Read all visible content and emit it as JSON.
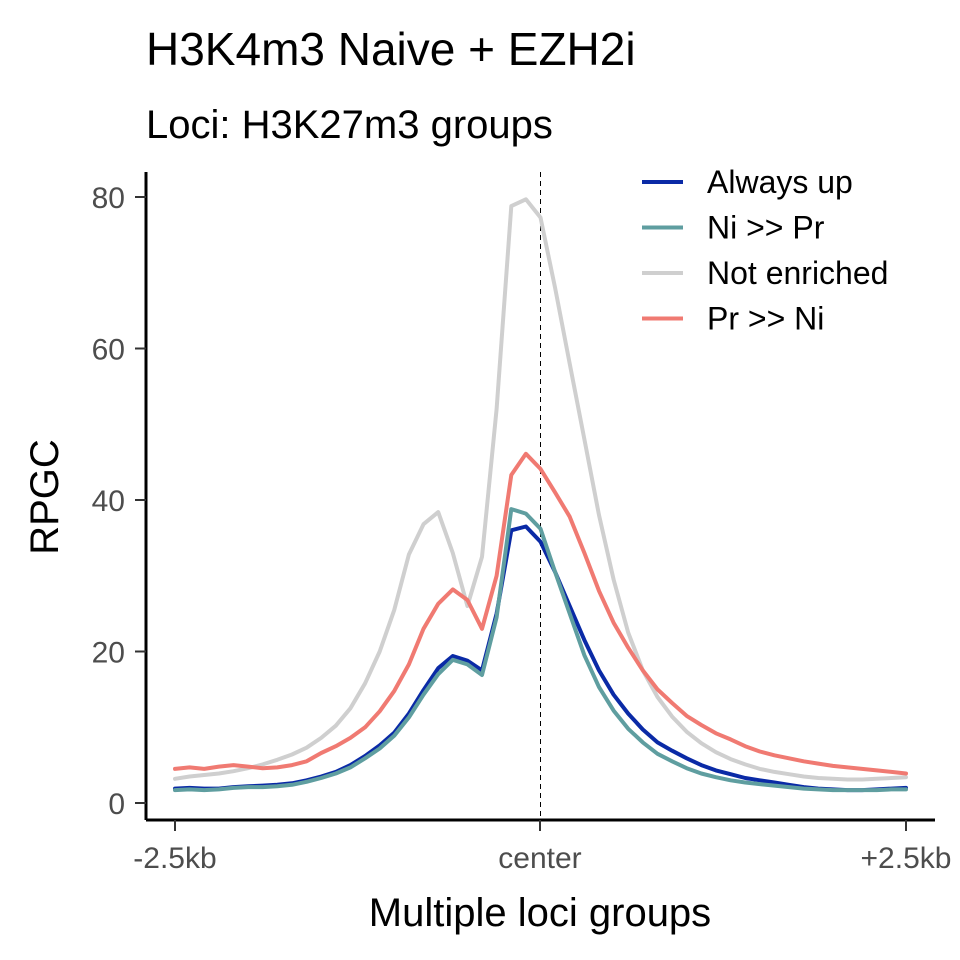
{
  "chart_data": {
    "type": "line",
    "title": "H3K4m3 Naive + EZH2i",
    "subtitle": "Loci: H3K27m3 groups",
    "xlabel": "Multiple loci groups",
    "ylabel": "RPGC",
    "x_tick_labels": [
      "-2.5kb",
      "center",
      "+2.5kb"
    ],
    "y_ticks": [
      0,
      20,
      40,
      60,
      80
    ],
    "xlim": [
      -2500,
      2500
    ],
    "ylim": [
      0,
      83
    ],
    "legend_position": "top-right",
    "grid": false,
    "center_line": true,
    "x": [
      -2500,
      -2400,
      -2300,
      -2200,
      -2100,
      -2000,
      -1900,
      -1800,
      -1700,
      -1600,
      -1500,
      -1400,
      -1300,
      -1200,
      -1100,
      -1000,
      -900,
      -800,
      -700,
      -600,
      -500,
      -400,
      -300,
      -200,
      -100,
      0,
      100,
      200,
      300,
      400,
      500,
      600,
      700,
      800,
      900,
      1000,
      1100,
      1200,
      1300,
      1400,
      1500,
      1600,
      1700,
      1800,
      1900,
      2000,
      2100,
      2200,
      2300,
      2400,
      2500
    ],
    "series": [
      {
        "name": "Always up",
        "color": "#0a2aa6",
        "values": [
          1.9,
          2.0,
          1.9,
          1.9,
          2.1,
          2.2,
          2.3,
          2.4,
          2.6,
          3.0,
          3.5,
          4.1,
          5.0,
          6.2,
          7.6,
          9.3,
          11.8,
          14.9,
          17.8,
          19.4,
          18.8,
          17.5,
          25.0,
          36.0,
          36.5,
          34.5,
          30.5,
          26.0,
          21.5,
          17.5,
          14.3,
          11.8,
          9.7,
          8.0,
          6.9,
          5.9,
          5.0,
          4.3,
          3.8,
          3.3,
          3.0,
          2.7,
          2.4,
          2.1,
          1.9,
          1.8,
          1.7,
          1.7,
          1.8,
          1.9,
          2.0
        ]
      },
      {
        "name": "Ni >> Pr",
        "color": "#5f9ea0",
        "values": [
          1.7,
          1.8,
          1.7,
          1.8,
          2.0,
          2.1,
          2.1,
          2.2,
          2.4,
          2.8,
          3.3,
          3.9,
          4.7,
          5.9,
          7.2,
          8.9,
          11.3,
          14.3,
          17.0,
          18.9,
          18.3,
          16.9,
          24.5,
          38.8,
          38.2,
          36.2,
          30.5,
          25.0,
          19.5,
          15.3,
          12.2,
          9.8,
          8.0,
          6.5,
          5.5,
          4.6,
          3.9,
          3.4,
          3.0,
          2.7,
          2.5,
          2.3,
          2.1,
          1.9,
          1.8,
          1.7,
          1.7,
          1.7,
          1.7,
          1.8,
          1.8
        ]
      },
      {
        "name": "Not enriched",
        "color": "#cfcfcf",
        "values": [
          3.2,
          3.5,
          3.7,
          3.9,
          4.2,
          4.6,
          5.1,
          5.7,
          6.4,
          7.3,
          8.6,
          10.2,
          12.5,
          15.8,
          20.0,
          25.5,
          32.8,
          36.8,
          38.4,
          33.0,
          26.0,
          32.5,
          52.0,
          78.8,
          79.7,
          77.3,
          68.0,
          58.0,
          48.0,
          38.0,
          29.5,
          22.5,
          17.5,
          14.0,
          11.4,
          9.4,
          7.9,
          6.7,
          5.8,
          5.1,
          4.5,
          4.1,
          3.8,
          3.5,
          3.3,
          3.2,
          3.1,
          3.1,
          3.2,
          3.3,
          3.4
        ]
      },
      {
        "name": "Pr >> Ni",
        "color": "#f07a72",
        "values": [
          4.5,
          4.7,
          4.5,
          4.8,
          5.0,
          4.8,
          4.6,
          4.7,
          5.0,
          5.5,
          6.6,
          7.5,
          8.6,
          10.0,
          12.1,
          14.8,
          18.3,
          23.0,
          26.3,
          28.2,
          26.8,
          23.0,
          30.0,
          43.3,
          46.1,
          44.1,
          41.0,
          37.8,
          33.0,
          28.0,
          23.8,
          20.5,
          17.5,
          15.0,
          13.2,
          11.5,
          10.3,
          9.2,
          8.4,
          7.5,
          6.8,
          6.3,
          5.9,
          5.5,
          5.2,
          4.9,
          4.7,
          4.5,
          4.3,
          4.1,
          3.9
        ]
      }
    ]
  }
}
